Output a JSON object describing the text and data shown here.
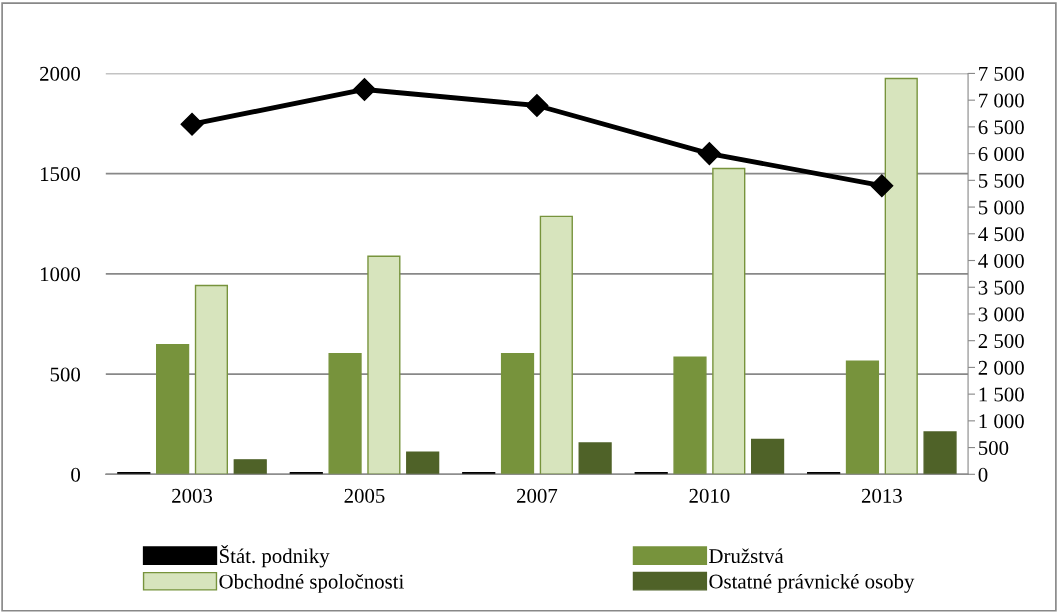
{
  "chart_data": {
    "type": "bar",
    "categories": [
      "2003",
      "2005",
      "2007",
      "2010",
      "2013"
    ],
    "series": [
      {
        "name": "Štát. podniky",
        "color": "#000000",
        "values": [
          8,
          8,
          8,
          8,
          8
        ]
      },
      {
        "name": "Družstvá",
        "color": "#77933c",
        "values": [
          647,
          602,
          602,
          584,
          564
        ]
      },
      {
        "name": "Obchodné spoločnosti",
        "color": "#d7e4bd",
        "values": [
          942,
          1088,
          1287,
          1526,
          1975
        ]
      },
      {
        "name": "Ostatné právnické osoby",
        "color": "#4f6228",
        "values": [
          72,
          110,
          156,
          174,
          211
        ]
      },
      {
        "type": "line",
        "axis": "y2",
        "color": "#000000",
        "marker": "diamond",
        "values": [
          6550,
          7200,
          6900,
          6000,
          5400
        ]
      }
    ],
    "ylim": [
      0,
      2000
    ],
    "yticks": [
      0,
      500,
      1000,
      1500,
      2000
    ],
    "y2lim": [
      0,
      7500
    ],
    "y2ticks": [
      0,
      500,
      {
        "value": 1000,
        "label": "1 000"
      },
      {
        "value": 1500,
        "label": "1 500"
      },
      {
        "value": 2000,
        "label": "2 000"
      },
      {
        "value": 2500,
        "label": "2 500"
      },
      {
        "value": 3000,
        "label": "3 000"
      },
      {
        "value": 3500,
        "label": "3 500"
      },
      {
        "value": 4000,
        "label": "4 000"
      },
      {
        "value": 4500,
        "label": "4 500"
      },
      {
        "value": 5000,
        "label": "5 000"
      },
      {
        "value": 5500,
        "label": "5 500"
      },
      {
        "value": 6000,
        "label": "6 000"
      },
      {
        "value": 6500,
        "label": "6 500"
      },
      {
        "value": 7000,
        "label": "7 000"
      },
      {
        "value": 7500,
        "label": "7 500"
      }
    ],
    "grid": "y",
    "legend": "bottom"
  }
}
